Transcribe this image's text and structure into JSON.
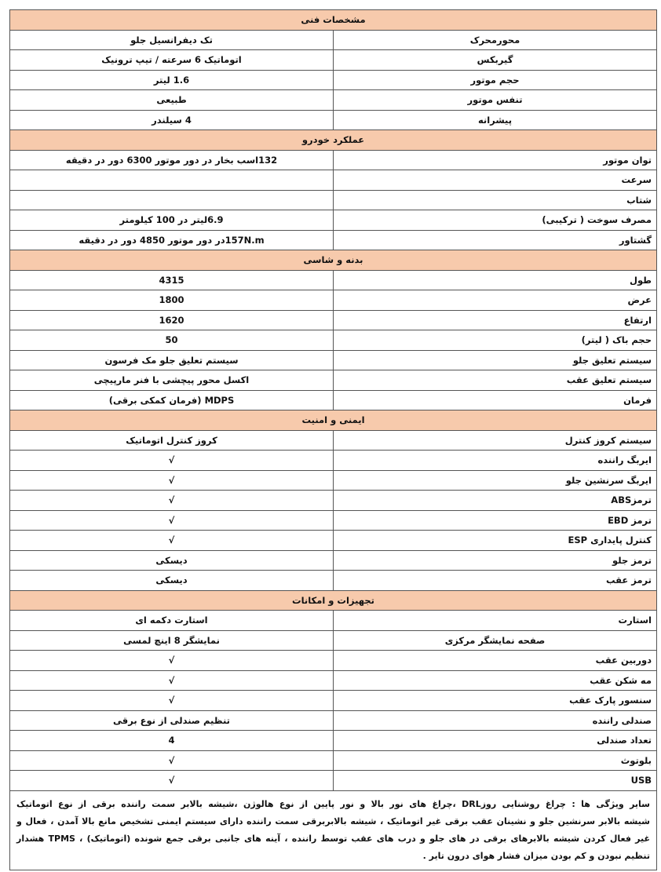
{
  "sections": [
    {
      "title": "مشخصات فنی",
      "rows": [
        [
          "محورمحرک",
          "تک دیفرانسیل جلو"
        ],
        [
          "گیربکس",
          "اتوماتیک 6 سرعته / تیپ ترونیک"
        ],
        [
          "حجم موتور",
          "1.6 لیتر"
        ],
        [
          "تنفس موتور",
          "طبیعی"
        ],
        [
          "پیشرانه",
          "4 سیلندر"
        ]
      ]
    },
    {
      "title": "عملکرد خودرو",
      "rows": [
        [
          "توان موتور",
          "132اسب بخار در دور موتور 6300 دور در دقیقه"
        ],
        [
          "سرعت",
          null
        ],
        [
          "شتاب",
          null
        ],
        [
          "مصرف سوخت ( ترکیبی)",
          "6.9لیتر در 100 کیلومتر"
        ],
        [
          "گشتاور",
          "157N.mدر دور موتور 4850 دور در دقیقه"
        ]
      ]
    },
    {
      "title": "بدنه و شاسی",
      "rows": [
        [
          "طول",
          "4315"
        ],
        [
          "عرض",
          "1800"
        ],
        [
          "ارتفاع",
          "1620"
        ],
        [
          "حجم باک ( لیتر)",
          "50"
        ],
        [
          "سیستم تعلیق جلو",
          "سیستم تعلیق جلو مک فرسون"
        ],
        [
          "سیستم تعلیق عقب",
          "اکسل محور پیچشی با فنر مارپیچی"
        ],
        [
          "فرمان",
          "MDPS (فرمان کمکی برقی)"
        ]
      ]
    },
    {
      "title": "ایمنی و امنیت",
      "rows": [
        [
          "سیستم کروز کنترل",
          "کروز کنترل اتوماتیک"
        ],
        [
          "ایربگ راننده",
          "√"
        ],
        [
          "ایربگ سرنشین جلو",
          "√"
        ],
        [
          "ترمزABS",
          "√"
        ],
        [
          "ترمز EBD",
          "√"
        ],
        [
          "کنترل پایداری ESP",
          "√"
        ],
        [
          "ترمز جلو",
          "دیسکی"
        ],
        [
          "ترمز عقب",
          "دیسکی"
        ]
      ]
    },
    {
      "title": "تجهیزات و امکانات",
      "rows": [
        [
          "استارت",
          "استارت دکمه ای"
        ],
        [
          "صفحه نمایشگر مرکزی",
          "نمایشگر 8 اینچ لمسی"
        ],
        [
          "دوربین عقب",
          "√"
        ],
        [
          "مه شکن عقب",
          "√"
        ],
        [
          "سنسور پارک عقب",
          "√"
        ],
        [
          "صندلی راننده",
          "تنظیم صندلی از نوع برقی"
        ],
        [
          "تعداد صندلی",
          "4"
        ],
        [
          "بلوتوث",
          "√"
        ],
        [
          "USB",
          "√"
        ]
      ]
    }
  ],
  "note": [
    "سایر ویژگی ها : چراغ روشنایی روزDRL ،چراغ های نور بالا و نور پایین از نوع هالوژن ،شیشه بالابر سمت راننده برقی از نوع اتوماتیک",
    "شیشه بالابر سرنشین جلو و نشینان عقب برقی غیر اتوماتیک ، شیشه بالابربرقی سمت راننده دارای سیستم ایمنی تشخیص مانع بالا آمدن ، فعال و",
    "غیر فعال کردن شیشه بالابرهای برقی در های جلو و درب های عقب توسط راننده ، آینه های جانبی برقی جمع شونده (اتوماتیک) ، TPMS هشدار",
    "تنظیم نبودن و کم بودن میزان فشار هوای درون تایر ."
  ]
}
